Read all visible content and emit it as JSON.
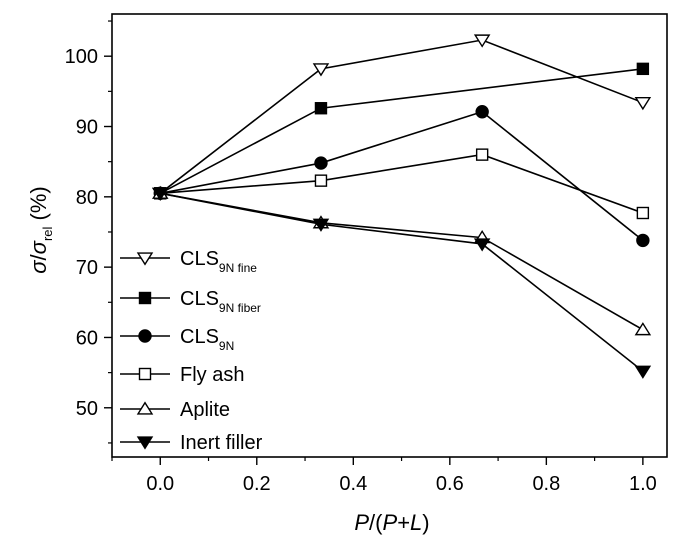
{
  "chart_data": {
    "type": "line",
    "title": "",
    "x": [
      0.0,
      0.333,
      0.667,
      1.0
    ],
    "xlim": [
      -0.1,
      1.05
    ],
    "ylim": [
      43,
      106
    ],
    "xticks": [
      0.0,
      0.2,
      0.4,
      0.6,
      0.8,
      1.0
    ],
    "xtick_labels": [
      "0.0",
      "0.2",
      "0.4",
      "0.6",
      "0.8",
      "1.0"
    ],
    "yticks": [
      50,
      60,
      70,
      80,
      90,
      100
    ],
    "ytick_labels": [
      "50",
      "60",
      "70",
      "80",
      "90",
      "100"
    ],
    "xlabel": {
      "p1": "P",
      "p2": "/(",
      "p3": "P",
      "p4": "+",
      "p5": "L",
      "p6": ")"
    },
    "ylabel": {
      "sigma": "σ",
      "slash": "/",
      "sigma2": "σ",
      "sub": "rel",
      "unit": " (%)"
    },
    "grid": false,
    "legend_position": "bottom-left",
    "series": [
      {
        "name": "CLS",
        "sub": "9N fine",
        "marker": "triangle-down-open",
        "values": [
          80.5,
          98.2,
          102.3,
          93.4
        ]
      },
      {
        "name": "CLS",
        "sub": "9N fiber",
        "marker": "square-filled",
        "values": [
          80.5,
          92.6,
          null,
          98.2
        ],
        "x_override": [
          0.0,
          0.333,
          null,
          1.0
        ]
      },
      {
        "name": "CLS",
        "sub": "9N",
        "marker": "circle-filled",
        "values": [
          80.5,
          84.8,
          92.1,
          73.8
        ]
      },
      {
        "name": "Fly ash",
        "sub": "",
        "marker": "square-open",
        "values": [
          80.5,
          82.3,
          86.0,
          77.7
        ]
      },
      {
        "name": "Aplite",
        "sub": "",
        "marker": "triangle-up-open",
        "values": [
          80.5,
          76.3,
          74.2,
          61.1
        ]
      },
      {
        "name": "Inert filler",
        "sub": "",
        "marker": "triangle-down-filled",
        "values": [
          80.5,
          76.1,
          73.3,
          55.2
        ]
      }
    ]
  }
}
